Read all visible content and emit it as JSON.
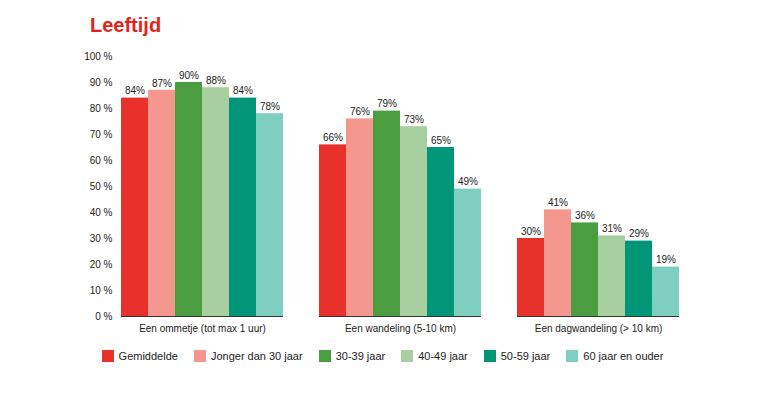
{
  "chart_data": {
    "type": "bar",
    "title": "Leeftijd",
    "categories": [
      "Een ommetje (tot max 1 uur)",
      "Een wandeling (5-10 km)",
      "Een dagwandeling (> 10 km)"
    ],
    "series": [
      {
        "name": "Gemiddelde",
        "color": "#e8312a",
        "values": [
          84,
          66,
          30
        ],
        "value_labels": [
          "84%",
          "66%",
          "30%"
        ]
      },
      {
        "name": "Jonger dan 30 jaar",
        "color": "#f4978e",
        "values": [
          87,
          76,
          41
        ],
        "value_labels": [
          "87%",
          "76%",
          "41%"
        ]
      },
      {
        "name": "30-39 jaar",
        "color": "#4a9e3f",
        "values": [
          90,
          79,
          36
        ],
        "value_labels": [
          "90%",
          "79%",
          "36%"
        ]
      },
      {
        "name": "40-49 jaar",
        "color": "#a8cfa0",
        "values": [
          88,
          73,
          31
        ],
        "value_labels": [
          "88%",
          "73%",
          "31%"
        ]
      },
      {
        "name": "50-59 jaar",
        "color": "#009677",
        "values": [
          84,
          65,
          29
        ],
        "value_labels": [
          "84%",
          "65%",
          "29%"
        ]
      },
      {
        "name": "60 jaar en ouder",
        "color": "#7fcfc0",
        "values": [
          78,
          49,
          19
        ],
        "value_labels": [
          "78%",
          "49%",
          "19%"
        ]
      }
    ],
    "ylim": [
      0,
      100
    ],
    "yticks": [
      {
        "value": 0,
        "label": "0 %"
      },
      {
        "value": 10,
        "label": "10 %"
      },
      {
        "value": 20,
        "label": "20 %"
      },
      {
        "value": 30,
        "label": "30 %"
      },
      {
        "value": 40,
        "label": "40 %"
      },
      {
        "value": 50,
        "label": "50 %"
      },
      {
        "value": 60,
        "label": "60 %"
      },
      {
        "value": 70,
        "label": "70 %"
      },
      {
        "value": 80,
        "label": "80 %"
      },
      {
        "value": 90,
        "label": "90 %"
      },
      {
        "value": 100,
        "label": "100 %"
      }
    ],
    "grid": false,
    "data_labels": true,
    "legend": "bottom"
  }
}
